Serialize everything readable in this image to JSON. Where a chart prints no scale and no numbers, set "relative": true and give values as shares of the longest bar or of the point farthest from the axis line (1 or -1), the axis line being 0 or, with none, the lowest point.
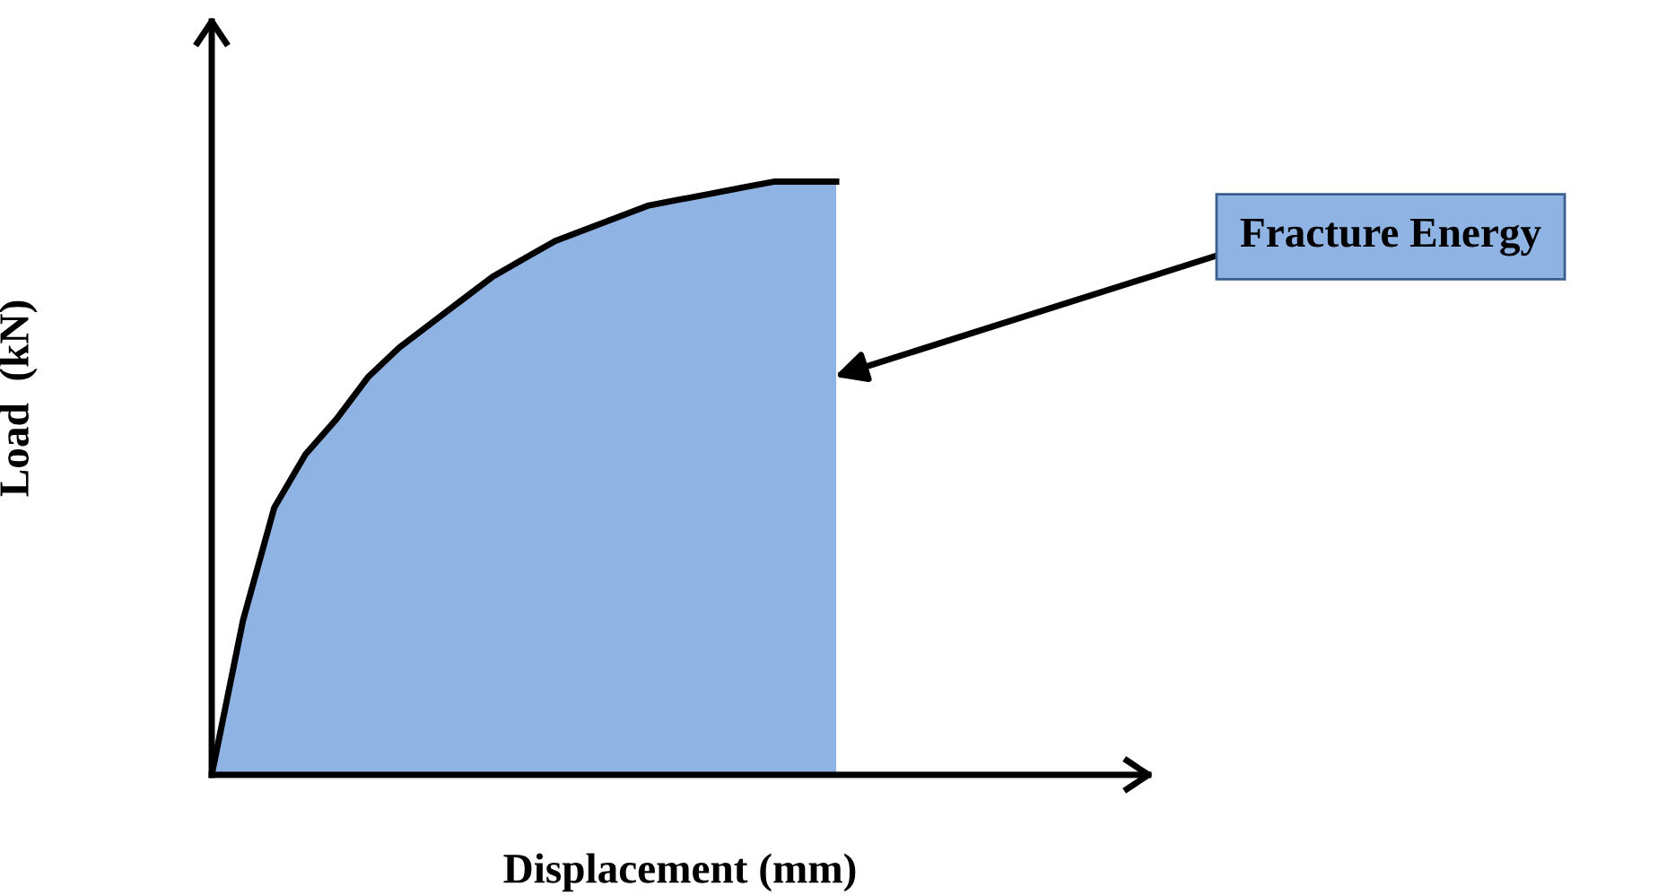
{
  "chart_data": {
    "type": "area",
    "relative": true,
    "categories": [
      null,
      null,
      null,
      null,
      null,
      null,
      null,
      null,
      null,
      null,
      null,
      null,
      null,
      null,
      null,
      null,
      null,
      null,
      null,
      null,
      null,
      null,
      null,
      null,
      null,
      null,
      null,
      null,
      null,
      null,
      null
    ],
    "series": [
      {
        "color": "#8fb3e3",
        "values": [
          0,
          0.26,
          0.45,
          0.54,
          0.6,
          0.67,
          0.72,
          0.76,
          0.8,
          0.84,
          0.87,
          0.9,
          0.92,
          0.94,
          0.96,
          0.97,
          0.98,
          0.99,
          1.0,
          1.0,
          1.0,
          null,
          null,
          null,
          null,
          null,
          null,
          null,
          null,
          null,
          null
        ]
      }
    ],
    "xlabel": "Displacement (mm)",
    "ylabel": "Load  (kN)",
    "annotations": [
      "Fracture Energy"
    ],
    "grid": false,
    "legend": false
  }
}
